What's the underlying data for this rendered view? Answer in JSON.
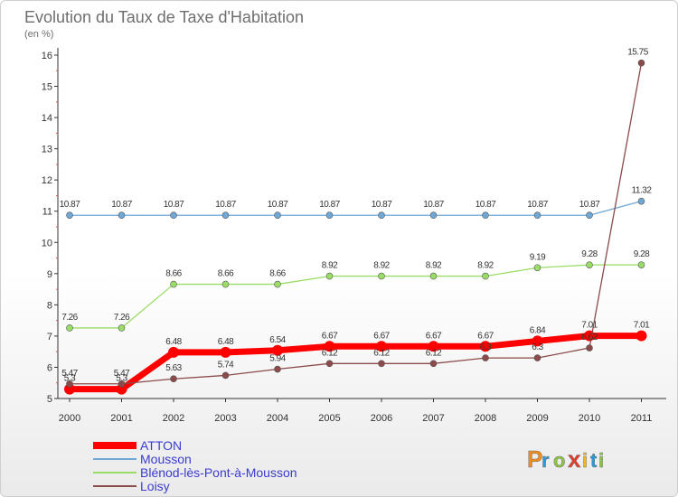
{
  "chart_data": {
    "type": "line",
    "title": "Evolution du Taux de Taxe d'Habitation",
    "subtitle": "(en %)",
    "x": [
      "2000",
      "2001",
      "2002",
      "2003",
      "2004",
      "2005",
      "2006",
      "2007",
      "2008",
      "2009",
      "2010",
      "2011"
    ],
    "ylim": [
      5,
      16
    ],
    "yticks": [
      "5",
      "6",
      "7",
      "8",
      "9",
      "10",
      "11",
      "12",
      "13",
      "14",
      "15",
      "16"
    ],
    "grid": false,
    "legend_position": "bottom-left",
    "series": [
      {
        "name": "ATTON",
        "color": "#ff0000",
        "values": [
          5.3,
          5.3,
          6.48,
          6.48,
          6.54,
          6.67,
          6.67,
          6.67,
          6.67,
          6.84,
          7.01,
          7.01
        ],
        "labels": [
          "5.3",
          "5.3",
          "6.48",
          "6.48",
          "6.54",
          "6.67",
          "6.67",
          "6.67",
          "6.67",
          "6.84",
          "7.01",
          "7.01"
        ]
      },
      {
        "name": "Mousson",
        "color": "#6fa7d6",
        "values": [
          10.87,
          10.87,
          10.87,
          10.87,
          10.87,
          10.87,
          10.87,
          10.87,
          10.87,
          10.87,
          10.87,
          11.32
        ],
        "labels": [
          "10.87",
          "10.87",
          "10.87",
          "10.87",
          "10.87",
          "10.87",
          "10.87",
          "10.87",
          "10.87",
          "10.87",
          "10.87",
          "11.32"
        ]
      },
      {
        "name": "Blénod-lès-Pont-à-Mousson",
        "color": "#99dd66",
        "values": [
          7.26,
          7.26,
          8.66,
          8.66,
          8.66,
          8.92,
          8.92,
          8.92,
          8.92,
          9.19,
          9.28,
          9.28
        ],
        "labels": [
          "7.26",
          "7.26",
          "8.66",
          "8.66",
          "8.66",
          "8.92",
          "8.92",
          "8.92",
          "8.92",
          "9.19",
          "9.28",
          "9.28"
        ]
      },
      {
        "name": "Loisy",
        "color": "#8c4a4a",
        "values": [
          5.47,
          5.47,
          5.63,
          5.74,
          5.94,
          6.12,
          6.12,
          6.12,
          6.3,
          6.3,
          6.62,
          15.75
        ],
        "labels": [
          "5.47",
          "5.47",
          "5.63",
          "5.74",
          "5.94",
          "6.12",
          "6.12",
          "6.12",
          "6.3",
          "6.3",
          "6.62",
          "15.75"
        ]
      }
    ]
  },
  "brand": {
    "letters": [
      "P",
      "r",
      "o",
      "x",
      "i",
      "t",
      "i"
    ],
    "colors": [
      "#f08c1a",
      "#2a9ad6",
      "#8cc63f",
      "#e53b2c",
      "#f6b81b",
      "#2a9ad6",
      "#8cc63f"
    ]
  }
}
